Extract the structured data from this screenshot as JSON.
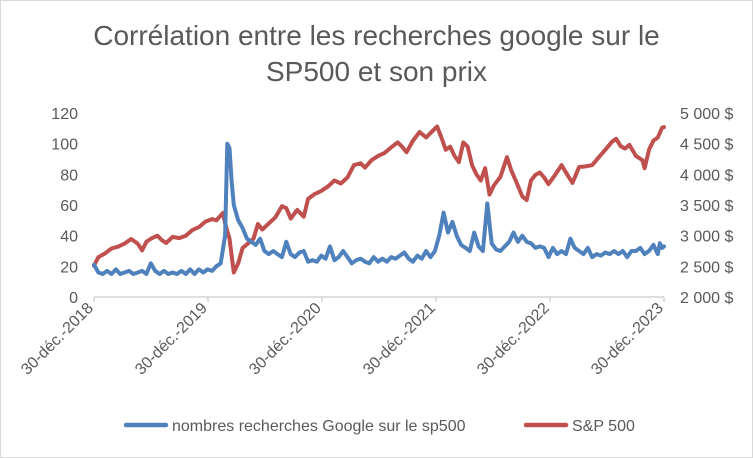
{
  "chart_data": {
    "type": "line",
    "title_line1": "Corrélation entre les recherches google sur le",
    "title_line2": "SP500 et son prix",
    "x_tick_labels": [
      "30-déc.-2018",
      "30-déc.-2019",
      "30-déc.-2020",
      "30-déc.-2021",
      "30-déc.-2022",
      "30-déc.-2023"
    ],
    "x_range": [
      "2018-12-30",
      "2023-12-30"
    ],
    "y_left": {
      "min": 0,
      "max": 120,
      "ticks": [
        "0",
        "20",
        "40",
        "60",
        "80",
        "100",
        "120"
      ]
    },
    "y_right": {
      "min": 2000,
      "max": 5000,
      "ticks": [
        "2 000 $",
        "2 500 $",
        "3 000 $",
        "3 500 $",
        "4 000 $",
        "4 500 $",
        "5 000 $"
      ]
    },
    "grid": "none",
    "legend_position": "bottom",
    "series": [
      {
        "name": "nombres recherches Google sur le sp500",
        "axis": "left",
        "color": "#4f81bd",
        "points": [
          [
            "2018-12-30",
            21
          ],
          [
            "2019-01-13",
            16
          ],
          [
            "2019-01-27",
            15
          ],
          [
            "2019-02-10",
            17
          ],
          [
            "2019-02-24",
            15
          ],
          [
            "2019-03-10",
            18
          ],
          [
            "2019-03-24",
            15
          ],
          [
            "2019-04-07",
            16
          ],
          [
            "2019-04-21",
            17
          ],
          [
            "2019-05-05",
            15
          ],
          [
            "2019-05-19",
            16
          ],
          [
            "2019-06-02",
            17
          ],
          [
            "2019-06-16",
            15
          ],
          [
            "2019-06-30",
            22
          ],
          [
            "2019-07-14",
            17
          ],
          [
            "2019-07-28",
            15
          ],
          [
            "2019-08-11",
            17
          ],
          [
            "2019-08-25",
            15
          ],
          [
            "2019-09-08",
            16
          ],
          [
            "2019-09-22",
            15
          ],
          [
            "2019-10-06",
            17
          ],
          [
            "2019-10-20",
            15
          ],
          [
            "2019-11-03",
            18
          ],
          [
            "2019-11-17",
            15
          ],
          [
            "2019-12-01",
            18
          ],
          [
            "2019-12-15",
            16
          ],
          [
            "2019-12-29",
            18
          ],
          [
            "2020-01-12",
            17
          ],
          [
            "2020-01-26",
            20
          ],
          [
            "2020-02-09",
            22
          ],
          [
            "2020-02-23",
            40
          ],
          [
            "2020-03-01",
            100
          ],
          [
            "2020-03-08",
            97
          ],
          [
            "2020-03-15",
            75
          ],
          [
            "2020-03-22",
            60
          ],
          [
            "2020-04-05",
            50
          ],
          [
            "2020-04-19",
            45
          ],
          [
            "2020-05-03",
            38
          ],
          [
            "2020-05-17",
            36
          ],
          [
            "2020-05-31",
            34
          ],
          [
            "2020-06-14",
            38
          ],
          [
            "2020-06-28",
            30
          ],
          [
            "2020-07-12",
            28
          ],
          [
            "2020-07-26",
            30
          ],
          [
            "2020-08-09",
            28
          ],
          [
            "2020-08-23",
            26
          ],
          [
            "2020-09-06",
            36
          ],
          [
            "2020-09-20",
            28
          ],
          [
            "2020-10-04",
            26
          ],
          [
            "2020-10-18",
            29
          ],
          [
            "2020-11-01",
            30
          ],
          [
            "2020-11-15",
            23
          ],
          [
            "2020-11-29",
            24
          ],
          [
            "2020-12-13",
            23
          ],
          [
            "2020-12-27",
            27
          ],
          [
            "2021-01-10",
            25
          ],
          [
            "2021-01-24",
            33
          ],
          [
            "2021-02-07",
            24
          ],
          [
            "2021-02-21",
            26
          ],
          [
            "2021-03-07",
            30
          ],
          [
            "2021-03-21",
            26
          ],
          [
            "2021-04-04",
            22
          ],
          [
            "2021-04-18",
            24
          ],
          [
            "2021-05-02",
            25
          ],
          [
            "2021-05-16",
            23
          ],
          [
            "2021-05-30",
            22
          ],
          [
            "2021-06-13",
            26
          ],
          [
            "2021-06-27",
            23
          ],
          [
            "2021-07-11",
            25
          ],
          [
            "2021-07-25",
            23
          ],
          [
            "2021-08-08",
            26
          ],
          [
            "2021-08-22",
            25
          ],
          [
            "2021-09-05",
            27
          ],
          [
            "2021-09-19",
            29
          ],
          [
            "2021-10-03",
            25
          ],
          [
            "2021-10-17",
            23
          ],
          [
            "2021-10-31",
            27
          ],
          [
            "2021-11-14",
            25
          ],
          [
            "2021-11-28",
            30
          ],
          [
            "2021-12-12",
            26
          ],
          [
            "2021-12-26",
            30
          ],
          [
            "2022-01-09",
            40
          ],
          [
            "2022-01-23",
            55
          ],
          [
            "2022-02-06",
            42
          ],
          [
            "2022-02-20",
            49
          ],
          [
            "2022-03-06",
            40
          ],
          [
            "2022-03-20",
            34
          ],
          [
            "2022-04-03",
            32
          ],
          [
            "2022-04-17",
            30
          ],
          [
            "2022-05-01",
            42
          ],
          [
            "2022-05-15",
            33
          ],
          [
            "2022-05-29",
            30
          ],
          [
            "2022-06-12",
            61
          ],
          [
            "2022-06-26",
            35
          ],
          [
            "2022-07-10",
            31
          ],
          [
            "2022-07-24",
            30
          ],
          [
            "2022-08-07",
            33
          ],
          [
            "2022-08-21",
            36
          ],
          [
            "2022-09-04",
            42
          ],
          [
            "2022-09-18",
            36
          ],
          [
            "2022-10-02",
            40
          ],
          [
            "2022-10-16",
            36
          ],
          [
            "2022-10-30",
            35
          ],
          [
            "2022-11-13",
            32
          ],
          [
            "2022-11-27",
            33
          ],
          [
            "2022-12-11",
            32
          ],
          [
            "2022-12-25",
            26
          ],
          [
            "2023-01-08",
            32
          ],
          [
            "2023-01-22",
            28
          ],
          [
            "2023-02-05",
            30
          ],
          [
            "2023-02-19",
            28
          ],
          [
            "2023-03-05",
            38
          ],
          [
            "2023-03-19",
            32
          ],
          [
            "2023-04-02",
            30
          ],
          [
            "2023-04-16",
            28
          ],
          [
            "2023-04-30",
            32
          ],
          [
            "2023-05-14",
            26
          ],
          [
            "2023-05-28",
            28
          ],
          [
            "2023-06-11",
            27
          ],
          [
            "2023-06-25",
            29
          ],
          [
            "2023-07-09",
            28
          ],
          [
            "2023-07-23",
            30
          ],
          [
            "2023-08-06",
            28
          ],
          [
            "2023-08-20",
            30
          ],
          [
            "2023-09-03",
            26
          ],
          [
            "2023-09-17",
            30
          ],
          [
            "2023-10-01",
            30
          ],
          [
            "2023-10-15",
            32
          ],
          [
            "2023-10-29",
            28
          ],
          [
            "2023-11-12",
            30
          ],
          [
            "2023-11-26",
            34
          ],
          [
            "2023-12-10",
            28
          ],
          [
            "2023-12-17",
            35
          ],
          [
            "2023-12-24",
            32
          ],
          [
            "2023-12-30",
            33
          ]
        ]
      },
      {
        "name": "S&P 500",
        "axis": "right",
        "color": "#c0504d",
        "points": [
          [
            "2018-12-30",
            2510
          ],
          [
            "2019-01-13",
            2650
          ],
          [
            "2019-02-03",
            2710
          ],
          [
            "2019-02-24",
            2790
          ],
          [
            "2019-03-17",
            2820
          ],
          [
            "2019-04-07",
            2870
          ],
          [
            "2019-04-28",
            2945
          ],
          [
            "2019-05-19",
            2870
          ],
          [
            "2019-06-02",
            2760
          ],
          [
            "2019-06-16",
            2900
          ],
          [
            "2019-06-30",
            2950
          ],
          [
            "2019-07-21",
            3000
          ],
          [
            "2019-08-04",
            2930
          ],
          [
            "2019-08-18",
            2880
          ],
          [
            "2019-09-08",
            2980
          ],
          [
            "2019-09-29",
            2960
          ],
          [
            "2019-10-20",
            3000
          ],
          [
            "2019-11-10",
            3090
          ],
          [
            "2019-12-01",
            3140
          ],
          [
            "2019-12-22",
            3230
          ],
          [
            "2020-01-12",
            3270
          ],
          [
            "2020-01-26",
            3250
          ],
          [
            "2020-02-16",
            3370
          ],
          [
            "2020-02-23",
            3200
          ],
          [
            "2020-03-08",
            2950
          ],
          [
            "2020-03-22",
            2400
          ],
          [
            "2020-04-05",
            2550
          ],
          [
            "2020-04-19",
            2800
          ],
          [
            "2020-05-03",
            2860
          ],
          [
            "2020-05-24",
            2950
          ],
          [
            "2020-06-07",
            3190
          ],
          [
            "2020-06-21",
            3100
          ],
          [
            "2020-07-12",
            3200
          ],
          [
            "2020-08-02",
            3300
          ],
          [
            "2020-08-23",
            3480
          ],
          [
            "2020-09-06",
            3450
          ],
          [
            "2020-09-20",
            3280
          ],
          [
            "2020-10-11",
            3420
          ],
          [
            "2020-11-01",
            3310
          ],
          [
            "2020-11-15",
            3600
          ],
          [
            "2020-12-06",
            3680
          ],
          [
            "2020-12-27",
            3730
          ],
          [
            "2021-01-17",
            3800
          ],
          [
            "2021-02-07",
            3900
          ],
          [
            "2021-02-28",
            3850
          ],
          [
            "2021-03-21",
            3950
          ],
          [
            "2021-04-11",
            4150
          ],
          [
            "2021-05-02",
            4180
          ],
          [
            "2021-05-16",
            4110
          ],
          [
            "2021-06-06",
            4230
          ],
          [
            "2021-06-27",
            4300
          ],
          [
            "2021-07-18",
            4350
          ],
          [
            "2021-08-08",
            4440
          ],
          [
            "2021-08-29",
            4520
          ],
          [
            "2021-09-12",
            4450
          ],
          [
            "2021-09-26",
            4360
          ],
          [
            "2021-10-17",
            4550
          ],
          [
            "2021-11-07",
            4690
          ],
          [
            "2021-11-28",
            4600
          ],
          [
            "2021-12-19",
            4710
          ],
          [
            "2022-01-02",
            4780
          ],
          [
            "2022-01-16",
            4600
          ],
          [
            "2022-01-30",
            4400
          ],
          [
            "2022-02-13",
            4450
          ],
          [
            "2022-02-27",
            4300
          ],
          [
            "2022-03-13",
            4200
          ],
          [
            "2022-03-27",
            4520
          ],
          [
            "2022-04-10",
            4450
          ],
          [
            "2022-04-24",
            4150
          ],
          [
            "2022-05-08",
            4000
          ],
          [
            "2022-05-22",
            3900
          ],
          [
            "2022-06-05",
            4100
          ],
          [
            "2022-06-19",
            3670
          ],
          [
            "2022-07-03",
            3820
          ],
          [
            "2022-07-24",
            3960
          ],
          [
            "2022-08-14",
            4280
          ],
          [
            "2022-08-28",
            4060
          ],
          [
            "2022-09-11",
            3900
          ],
          [
            "2022-10-02",
            3640
          ],
          [
            "2022-10-16",
            3580
          ],
          [
            "2022-10-30",
            3900
          ],
          [
            "2022-11-13",
            3990
          ],
          [
            "2022-11-27",
            4030
          ],
          [
            "2022-12-11",
            3950
          ],
          [
            "2022-12-25",
            3840
          ],
          [
            "2023-01-15",
            3990
          ],
          [
            "2023-02-05",
            4150
          ],
          [
            "2023-02-26",
            3970
          ],
          [
            "2023-03-12",
            3860
          ],
          [
            "2023-04-02",
            4120
          ],
          [
            "2023-04-23",
            4130
          ],
          [
            "2023-05-14",
            4150
          ],
          [
            "2023-06-04",
            4280
          ],
          [
            "2023-06-25",
            4400
          ],
          [
            "2023-07-16",
            4530
          ],
          [
            "2023-07-30",
            4580
          ],
          [
            "2023-08-13",
            4460
          ],
          [
            "2023-08-27",
            4420
          ],
          [
            "2023-09-10",
            4480
          ],
          [
            "2023-10-01",
            4300
          ],
          [
            "2023-10-22",
            4230
          ],
          [
            "2023-10-29",
            4100
          ],
          [
            "2023-11-12",
            4400
          ],
          [
            "2023-11-26",
            4550
          ],
          [
            "2023-12-10",
            4600
          ],
          [
            "2023-12-24",
            4760
          ],
          [
            "2023-12-30",
            4770
          ]
        ]
      }
    ]
  }
}
